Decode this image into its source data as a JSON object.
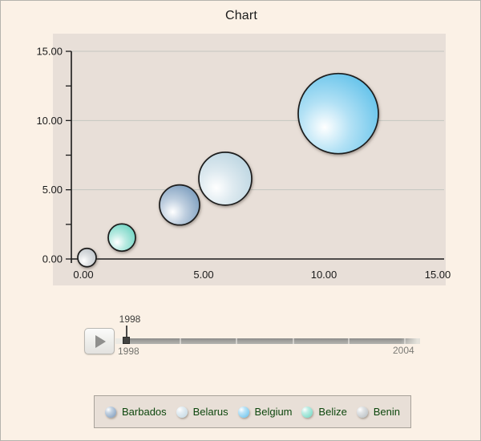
{
  "page": {
    "title": "Chart"
  },
  "chart_data": {
    "type": "bubble",
    "title": "Chart",
    "xlabel": "",
    "ylabel": "",
    "xlim": [
      0,
      15
    ],
    "ylim": [
      0,
      15
    ],
    "x_ticks": [
      {
        "value": 0,
        "label": "0.00"
      },
      {
        "value": 5,
        "label": "5.00"
      },
      {
        "value": 10,
        "label": "10.00"
      },
      {
        "value": 15,
        "label": "15.00"
      }
    ],
    "y_ticks": [
      {
        "value": 0,
        "label": "0.00"
      },
      {
        "value": 5,
        "label": "5.00"
      },
      {
        "value": 10,
        "label": "10.00"
      },
      {
        "value": 15,
        "label": "15.00"
      }
    ],
    "minor_tick_step": 2.5,
    "grid": "horizontal",
    "legend_position": "bottom",
    "series": [
      {
        "name": "Barbados",
        "x": 4.0,
        "y": 3.9,
        "radius_px": 25,
        "color": "#6e93b7"
      },
      {
        "name": "Belarus",
        "x": 5.9,
        "y": 5.8,
        "radius_px": 33,
        "color": "#b5d1de"
      },
      {
        "name": "Belgium",
        "x": 10.6,
        "y": 10.5,
        "radius_px": 50,
        "color": "#53bce8"
      },
      {
        "name": "Belize",
        "x": 1.6,
        "y": 1.55,
        "radius_px": 17,
        "color": "#5fd0bd"
      },
      {
        "name": "Benin",
        "x": 0.15,
        "y": 0.1,
        "radius_px": 11.5,
        "color": "#b7bec4"
      }
    ]
  },
  "timeline": {
    "current_year": "1998",
    "start_year": "1998",
    "end_year": "2004",
    "play_icon": "play-triangle-icon"
  },
  "legend": {
    "items": [
      {
        "label": "Barbados",
        "color": "#8ba6c4"
      },
      {
        "label": "Belarus",
        "color": "#cadce6"
      },
      {
        "label": "Belgium",
        "color": "#7ac9ee"
      },
      {
        "label": "Belize",
        "color": "#80dcca"
      },
      {
        "label": "Benin",
        "color": "#c0c6ca"
      }
    ]
  },
  "colors": {
    "page_background": "#fbf1e6",
    "plot_background": "#e8dfd8",
    "gridline": "#c3c6c0",
    "axis": "#1a1a1a",
    "legend_text": "#0d470d"
  }
}
